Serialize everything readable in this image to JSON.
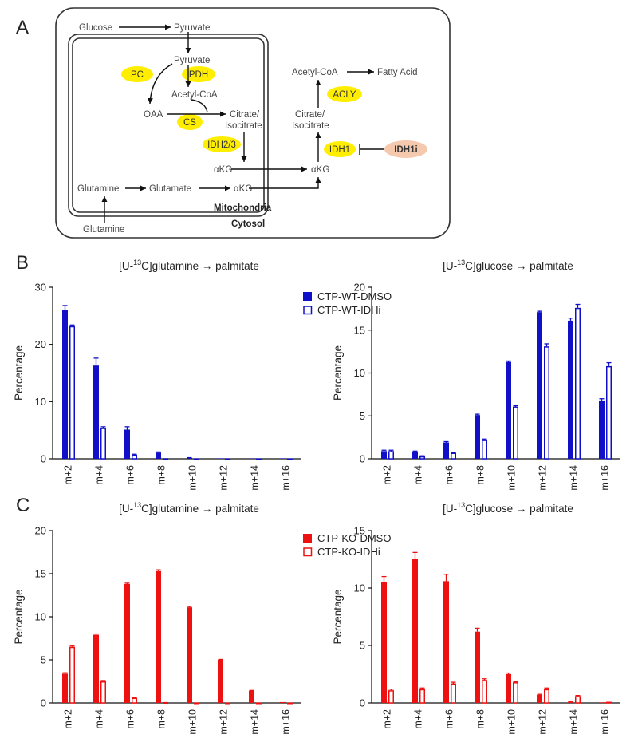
{
  "panel_labels": {
    "a": "A",
    "b": "B",
    "c": "C"
  },
  "diagram": {
    "compartments": {
      "mitochondria": "Mitochondria",
      "cytosol": "Cytosol"
    },
    "metabolites": {
      "glucose": "Glucose",
      "pyruvate_cyto": "Pyruvate",
      "pyruvate_mito": "Pyruvate",
      "acetylcoa_mito": "Acetyl-CoA",
      "oaa": "OAA",
      "citrate_mito_1": "Citrate/",
      "citrate_mito_2": "Isocitrate",
      "akg_mito_upper": "αKG",
      "glutamine_mito": "Glutamine",
      "glutamate": "Glutamate",
      "akg_mito_lower": "αKG",
      "glutamine_outside": "Glutamine",
      "akg_cyto": "αKG",
      "citrate_cyto_1": "Citrate/",
      "citrate_cyto_2": "Isocitrate",
      "acetylcoa_cyto": "Acetyl-CoA",
      "fatty_acid": "Fatty Acid"
    },
    "enzymes": {
      "pc": "PC",
      "pdh": "PDH",
      "cs": "CS",
      "idh23": "IDH2/3",
      "idh1": "IDH1",
      "acly": "ACLY",
      "idh1i": "IDH1i"
    },
    "colors": {
      "enzyme": "#ffee00",
      "inhibitor": "#f5c9ad"
    }
  },
  "chart_data": [
    {
      "id": "B-left",
      "type": "bar",
      "title_prefix": "[U-",
      "title_sup": "13",
      "title_suffix": "C]glutamine → palmitate",
      "ylabel": "Percentage",
      "ylim": [
        0,
        30
      ],
      "yticks": [
        0,
        10,
        20,
        30
      ],
      "categories": [
        "m+2",
        "m+4",
        "m+6",
        "m+8",
        "m+10",
        "m+12",
        "m+14",
        "m+16"
      ],
      "series": [
        {
          "name": "CTP-WT-DMSO",
          "style": "filled",
          "color": "#1010c8",
          "values": [
            26.0,
            16.3,
            5.1,
            1.1,
            0.15,
            0.05,
            0.05,
            0.05
          ],
          "errors": [
            0.8,
            1.3,
            0.5,
            0.1,
            0.05,
            0,
            0,
            0
          ]
        },
        {
          "name": "CTP-WT-IDHi",
          "style": "open",
          "color": "#1010c8",
          "values": [
            23.2,
            5.4,
            0.7,
            0.1,
            0.05,
            0.05,
            0.05,
            0.05
          ],
          "errors": [
            0.2,
            0.2,
            0.1,
            0,
            0,
            0,
            0,
            0
          ]
        }
      ],
      "legend": true
    },
    {
      "id": "B-right",
      "type": "bar",
      "title_prefix": "[U-",
      "title_sup": "13",
      "title_suffix": "C]glucose → palmitate",
      "ylabel": "Percentage",
      "ylim": [
        0,
        20
      ],
      "yticks": [
        0,
        5,
        10,
        15,
        20
      ],
      "categories": [
        "m+2",
        "m+4",
        "m+6",
        "m+8",
        "m+10",
        "m+12",
        "m+14",
        "m+16"
      ],
      "series": [
        {
          "name": "CTP-WT-DMSO",
          "style": "filled",
          "color": "#1010c8",
          "values": [
            0.9,
            0.8,
            1.9,
            5.1,
            11.3,
            17.1,
            16.1,
            6.8
          ],
          "errors": [
            0.1,
            0.1,
            0.1,
            0.1,
            0.1,
            0.1,
            0.3,
            0.2
          ]
        },
        {
          "name": "CTP-WT-IDHi",
          "style": "open",
          "color": "#1010c8",
          "values": [
            0.9,
            0.3,
            0.7,
            2.2,
            6.1,
            13.1,
            17.6,
            10.8
          ],
          "errors": [
            0.1,
            0.05,
            0.05,
            0.1,
            0.1,
            0.3,
            0.4,
            0.4
          ]
        }
      ],
      "legend": false
    },
    {
      "id": "C-left",
      "type": "bar",
      "title_prefix": "[U-",
      "title_sup": "13",
      "title_suffix": "C]glutamine → palmitate",
      "ylabel": "Percentage",
      "ylim": [
        0,
        20
      ],
      "yticks": [
        0,
        5,
        10,
        15,
        20
      ],
      "categories": [
        "m+2",
        "m+4",
        "m+6",
        "m+8",
        "m+10",
        "m+12",
        "m+14",
        "m+16"
      ],
      "series": [
        {
          "name": "CTP-KO-DMSO",
          "style": "filled",
          "color": "#ee1111",
          "values": [
            3.4,
            7.9,
            13.8,
            15.3,
            11.1,
            5.0,
            1.4,
            0.1
          ],
          "errors": [
            0.1,
            0.1,
            0.1,
            0.15,
            0.1,
            0.05,
            0.05,
            0
          ]
        },
        {
          "name": "CTP-KO-IDHi",
          "style": "open",
          "color": "#ee1111",
          "values": [
            6.5,
            2.5,
            0.6,
            0.1,
            0.05,
            0.05,
            0.05,
            0.05
          ],
          "errors": [
            0.1,
            0.1,
            0.05,
            0,
            0,
            0,
            0,
            0
          ]
        }
      ],
      "legend": true
    },
    {
      "id": "C-right",
      "type": "bar",
      "title_prefix": "[U-",
      "title_sup": "13",
      "title_suffix": "C]glucose → palmitate",
      "ylabel": "Percentage",
      "ylim": [
        0,
        15
      ],
      "yticks": [
        0,
        5,
        10,
        15
      ],
      "categories": [
        "m+2",
        "m+4",
        "m+6",
        "m+8",
        "m+10",
        "m+12",
        "m+14",
        "m+16"
      ],
      "series": [
        {
          "name": "CTP-KO-DMSO",
          "style": "filled",
          "color": "#ee1111",
          "values": [
            10.5,
            12.5,
            10.6,
            6.2,
            2.5,
            0.7,
            0.1,
            0.05
          ],
          "errors": [
            0.5,
            0.6,
            0.6,
            0.3,
            0.1,
            0.05,
            0.05,
            0
          ]
        },
        {
          "name": "CTP-KO-IDHi",
          "style": "open",
          "color": "#ee1111",
          "values": [
            1.1,
            1.2,
            1.7,
            2.0,
            1.8,
            1.2,
            0.6,
            0.1
          ],
          "errors": [
            0.1,
            0.1,
            0.1,
            0.1,
            0.05,
            0.1,
            0.05,
            0
          ]
        }
      ],
      "legend": false
    }
  ]
}
